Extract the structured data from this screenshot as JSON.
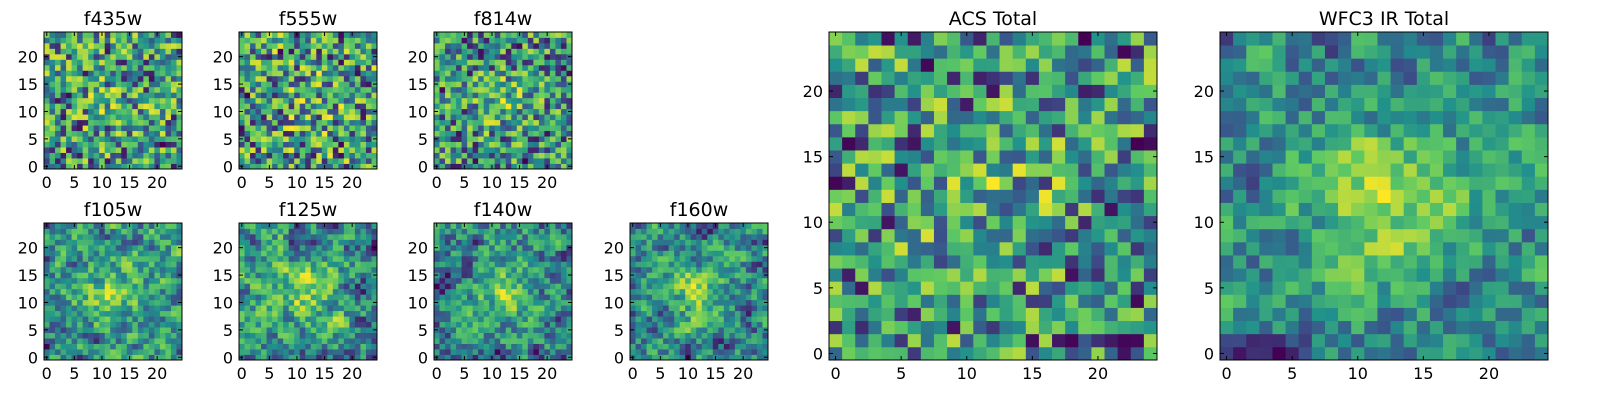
{
  "colormap": [
    "#440154",
    "#3b528b",
    "#21918c",
    "#5ec962",
    "#fde725"
  ],
  "chart_data": [
    {
      "type": "heatmap",
      "title": "f435w",
      "x_ticks": [
        "0",
        "5",
        "10",
        "15",
        "20"
      ],
      "y_ticks": [
        "0",
        "5",
        "10",
        "15",
        "20"
      ],
      "xlim": [
        0,
        25
      ],
      "ylim": [
        0,
        25
      ],
      "grid": false,
      "seed": 11,
      "smooth": 0,
      "peak": 0.12
    },
    {
      "type": "heatmap",
      "title": "f555w",
      "x_ticks": [
        "0",
        "5",
        "10",
        "15",
        "20"
      ],
      "y_ticks": [
        "0",
        "5",
        "10",
        "15",
        "20"
      ],
      "xlim": [
        0,
        25
      ],
      "ylim": [
        0,
        25
      ],
      "grid": false,
      "seed": 23,
      "smooth": 0,
      "peak": 0.1
    },
    {
      "type": "heatmap",
      "title": "f814w",
      "x_ticks": [
        "0",
        "5",
        "10",
        "15",
        "20"
      ],
      "y_ticks": [
        "0",
        "5",
        "10",
        "15",
        "20"
      ],
      "xlim": [
        0,
        25
      ],
      "ylim": [
        0,
        25
      ],
      "grid": false,
      "seed": 37,
      "smooth": 0,
      "peak": 0.22
    },
    {
      "type": "heatmap",
      "title": "f105w",
      "x_ticks": [
        "0",
        "5",
        "10",
        "15",
        "20"
      ],
      "y_ticks": [
        "0",
        "5",
        "10",
        "15",
        "20"
      ],
      "xlim": [
        0,
        25
      ],
      "ylim": [
        0,
        25
      ],
      "grid": false,
      "seed": 41,
      "smooth": 1,
      "peak": 0.3
    },
    {
      "type": "heatmap",
      "title": "f125w",
      "x_ticks": [
        "0",
        "5",
        "10",
        "15",
        "20"
      ],
      "y_ticks": [
        "0",
        "5",
        "10",
        "15",
        "20"
      ],
      "xlim": [
        0,
        25
      ],
      "ylim": [
        0,
        25
      ],
      "grid": false,
      "seed": 53,
      "smooth": 1,
      "peak": 0.25
    },
    {
      "type": "heatmap",
      "title": "f140w",
      "x_ticks": [
        "0",
        "5",
        "10",
        "15",
        "20"
      ],
      "y_ticks": [
        "0",
        "5",
        "10",
        "15",
        "20"
      ],
      "xlim": [
        0,
        25
      ],
      "ylim": [
        0,
        25
      ],
      "grid": false,
      "seed": 67,
      "smooth": 1,
      "peak": 0.3
    },
    {
      "type": "heatmap",
      "title": "f160w",
      "x_ticks": [
        "0",
        "5",
        "10",
        "15",
        "20"
      ],
      "y_ticks": [
        "0",
        "5",
        "10",
        "15",
        "20"
      ],
      "xlim": [
        0,
        25
      ],
      "ylim": [
        0,
        25
      ],
      "grid": false,
      "seed": 71,
      "smooth": 1,
      "peak": 0.35
    },
    {
      "type": "heatmap",
      "title": "ACS Total",
      "x_ticks": [
        "0",
        "5",
        "10",
        "15",
        "20"
      ],
      "y_ticks": [
        "0",
        "5",
        "10",
        "15",
        "20"
      ],
      "xlim": [
        0,
        25
      ],
      "ylim": [
        0,
        25
      ],
      "grid": false,
      "seed": 83,
      "smooth": 0,
      "peak": 0.18
    },
    {
      "type": "heatmap",
      "title": "WFC3 IR Total",
      "x_ticks": [
        "0",
        "5",
        "10",
        "15",
        "20"
      ],
      "y_ticks": [
        "0",
        "5",
        "10",
        "15",
        "20"
      ],
      "xlim": [
        0,
        25
      ],
      "ylim": [
        0,
        25
      ],
      "grid": false,
      "seed": 97,
      "smooth": 1,
      "peak": 0.45
    }
  ]
}
